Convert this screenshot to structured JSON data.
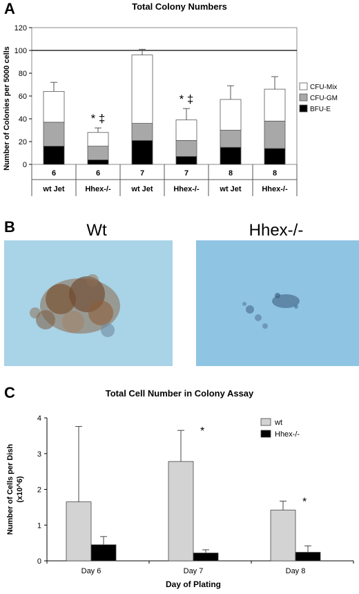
{
  "panels": [
    {
      "letter": "A"
    },
    {
      "letter": "B"
    },
    {
      "letter": "C"
    }
  ],
  "chart_data": [
    {
      "type": "bar",
      "stacked": true,
      "title": "Total Colony Numbers",
      "ylabel": "Number of Colonies per 5000 cells",
      "ylim": [
        0,
        120
      ],
      "yticks": [
        0,
        20,
        40,
        60,
        80,
        100,
        120
      ],
      "reference_line": 100,
      "categories": [
        {
          "day": "6",
          "group": "wt Jet"
        },
        {
          "day": "6",
          "group": "Hhex-/-"
        },
        {
          "day": "7",
          "group": "wt Jet"
        },
        {
          "day": "7",
          "group": "Hhex-/-"
        },
        {
          "day": "8",
          "group": "wt Jet"
        },
        {
          "day": "8",
          "group": "Hhex-/-"
        }
      ],
      "series": [
        {
          "name": "BFU-E",
          "color": "#000000",
          "values": [
            16,
            4,
            21,
            7,
            15,
            14
          ]
        },
        {
          "name": "CFU-GM",
          "color": "#a8a8a8",
          "values": [
            21,
            12,
            15,
            14,
            15,
            24
          ]
        },
        {
          "name": "CFU-Mix",
          "color": "#ffffff",
          "values": [
            27,
            12,
            60,
            18,
            27,
            28
          ]
        }
      ],
      "error_upper": [
        72,
        32,
        101,
        49,
        69,
        77
      ],
      "annotations": [
        {
          "category_index": 1,
          "text": "* ‡"
        },
        {
          "category_index": 3,
          "text": "* ‡"
        }
      ],
      "legend_position": "right",
      "grid": false
    },
    {
      "type": "bar",
      "title": "Total Cell Number in Colony Assay",
      "xlabel": "Day of Plating",
      "ylabel_lines": [
        "Number of Cells per Dish",
        "(x10^6)"
      ],
      "ylim": [
        0,
        4
      ],
      "yticks": [
        0,
        1,
        2,
        3,
        4
      ],
      "categories": [
        "Day 6",
        "Day 7",
        "Day 8"
      ],
      "series": [
        {
          "name": "wt",
          "color": "#d3d3d3",
          "values": [
            1.65,
            2.78,
            1.42
          ],
          "error_upper": [
            3.76,
            3.65,
            1.67
          ]
        },
        {
          "name": "Hhex-/-",
          "color": "#000000",
          "values": [
            0.45,
            0.22,
            0.24
          ],
          "error_upper": [
            0.68,
            0.31,
            0.42
          ]
        }
      ],
      "annotations": [
        {
          "category_index": 1,
          "text": "*"
        },
        {
          "category_index": 2,
          "text": "*"
        }
      ],
      "legend_position": "top-right",
      "grid": false
    }
  ],
  "photos": [
    {
      "label": "Wt",
      "background": "#a9d3e6",
      "description_icon": "colony-large-icon"
    },
    {
      "label": "Hhex-/-",
      "background": "#8fc4e3",
      "description_icon": "colony-small-icon"
    }
  ]
}
